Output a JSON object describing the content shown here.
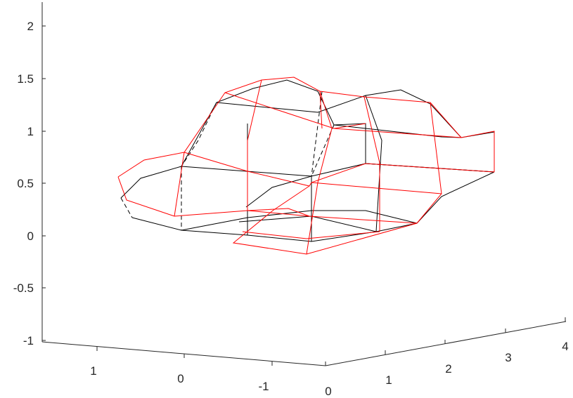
{
  "chart_data": {
    "type": "wireframe-3d",
    "title": "",
    "xlabel": "",
    "ylabel": "",
    "zlabel": "",
    "grid": false,
    "legend": "none",
    "colors": {
      "axis": "#262626",
      "black_series": "#000000",
      "red_series": "#ff0000"
    },
    "axes": {
      "z_ticks": [
        "-1",
        "-0.5",
        "0",
        "0.5",
        "1",
        "1.5",
        "2"
      ],
      "left_ticks": [
        "1",
        "0",
        "-1"
      ],
      "right_ticks": [
        "0",
        "1",
        "2",
        "3",
        "4"
      ]
    },
    "series": [
      {
        "color": "black",
        "style": "mixed solid/dashed wireframe"
      },
      {
        "color": "red",
        "style": "solid wireframe"
      }
    ]
  }
}
